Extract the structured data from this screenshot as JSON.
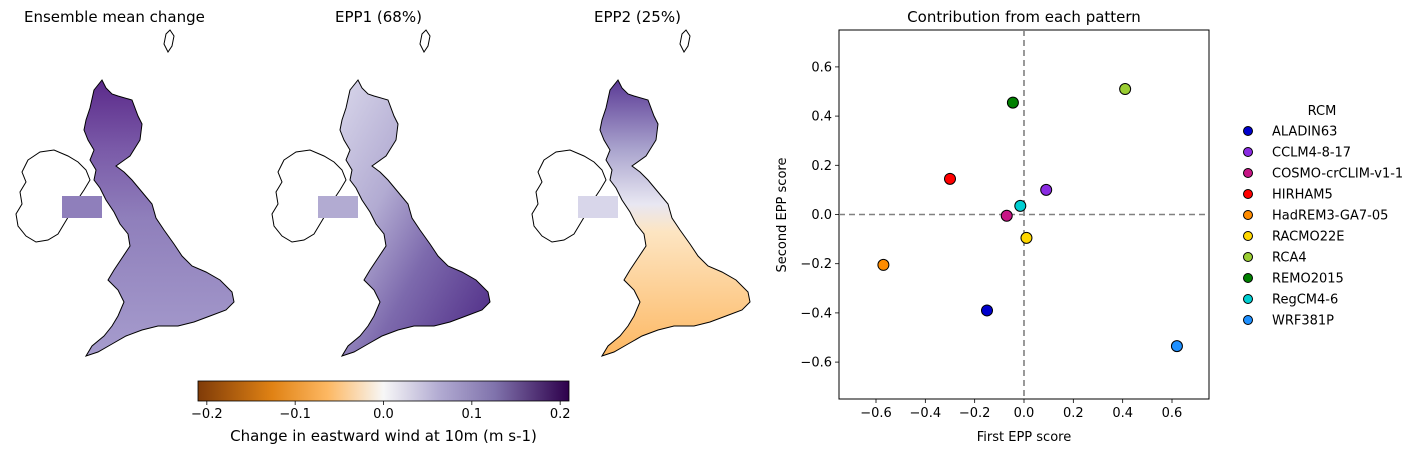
{
  "maps": [
    {
      "title": "Ensemble mean change",
      "style": "uniform-purple"
    },
    {
      "title": "EPP1 (68%)",
      "style": "purple-gradient"
    },
    {
      "title": "EPP2 (25%)",
      "style": "north-purple-south-orange"
    }
  ],
  "colorbar": {
    "label": "Change in eastward wind at 10m (m s-1)",
    "ticks": [
      "−0.2",
      "−0.1",
      "0.0",
      "0.1",
      "0.2"
    ],
    "tick_values": [
      -0.2,
      -0.1,
      0.0,
      0.1,
      0.2
    ],
    "range": [
      -0.21,
      0.21
    ],
    "colors": [
      "#7f3b08",
      "#e08214",
      "#fdb863",
      "#f7f7f7",
      "#b2abd2",
      "#8073ac",
      "#2d004b"
    ]
  },
  "chart_data": {
    "type": "scatter",
    "title": "Contribution from each pattern",
    "xlabel": "First EPP score",
    "ylabel": "Second EPP score",
    "xlim": [
      -0.75,
      0.75
    ],
    "ylim": [
      -0.75,
      0.75
    ],
    "xticks": [
      -0.6,
      -0.4,
      -0.2,
      0.0,
      0.2,
      0.4,
      0.6
    ],
    "yticks": [
      -0.6,
      -0.4,
      -0.2,
      0.0,
      0.2,
      0.4,
      0.6
    ],
    "xtick_labels": [
      "−0.6",
      "−0.4",
      "−0.2",
      "0.0",
      "0.2",
      "0.4",
      "0.6"
    ],
    "ytick_labels": [
      "−0.6",
      "−0.4",
      "−0.2",
      "0.0",
      "0.2",
      "0.4",
      "0.6"
    ],
    "reference_lines": {
      "x": 0,
      "y": 0,
      "style": "dashed",
      "color": "#808080"
    },
    "grid": false,
    "legend": {
      "title": "RCM",
      "position": "right-outside"
    },
    "points": [
      {
        "name": "ALADIN63",
        "x": -0.15,
        "y": -0.39,
        "color": "#0000cd"
      },
      {
        "name": "CCLM4-8-17",
        "x": 0.09,
        "y": 0.1,
        "color": "#8a2be2"
      },
      {
        "name": "COSMO-crCLIM-v1-1",
        "x": -0.07,
        "y": -0.005,
        "color": "#c71585"
      },
      {
        "name": "HIRHAM5",
        "x": -0.3,
        "y": 0.145,
        "color": "#ff0000"
      },
      {
        "name": "HadREM3-GA7-05",
        "x": -0.57,
        "y": -0.205,
        "color": "#ff8c00"
      },
      {
        "name": "RACMO22E",
        "x": 0.01,
        "y": -0.095,
        "color": "#ffd700"
      },
      {
        "name": "RCA4",
        "x": 0.41,
        "y": 0.51,
        "color": "#9acd32"
      },
      {
        "name": "REMO2015",
        "x": -0.045,
        "y": 0.455,
        "color": "#008000"
      },
      {
        "name": "RegCM4-6",
        "x": -0.015,
        "y": 0.035,
        "color": "#00ced1"
      },
      {
        "name": "WRF381P",
        "x": 0.62,
        "y": -0.535,
        "color": "#1e90ff"
      }
    ]
  }
}
